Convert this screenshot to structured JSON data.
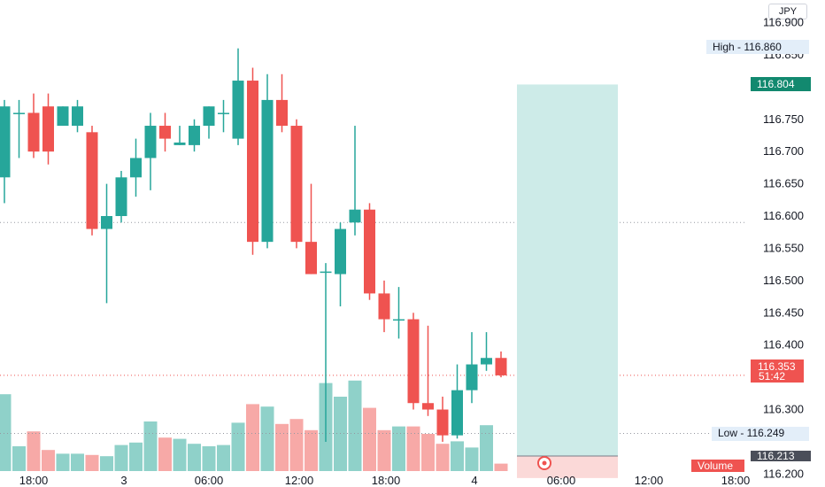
{
  "currency_label": "JPY",
  "colors": {
    "up": "#26a69a",
    "down": "#ef5350",
    "up_volume": "#8fd1c9",
    "down_volume": "#f7a9a7",
    "position_target": "#cdebe8",
    "position_stop": "#fbd9d8",
    "high_low_tag": "#e3eef9",
    "price_line": "#ef5350",
    "crosshair": "#9598a1"
  },
  "labels": {
    "high": "High  -  116.860",
    "low": "Low  -  116.249",
    "target_price": "116.804",
    "price_value": "116.353",
    "countdown": "51:42",
    "stop_price": "116.213",
    "volume": "Volume"
  },
  "chart_data": {
    "type": "candlestick",
    "ylim": [
      116.195,
      116.935
    ],
    "y_ticks": [
      "116.900",
      "116.850",
      "116.750",
      "116.700",
      "116.650",
      "116.600",
      "116.550",
      "116.500",
      "116.450",
      "116.400",
      "116.300",
      "116.200"
    ],
    "x_ticks": [
      "18:00",
      "3",
      "06:00",
      "12:00",
      "18:00",
      "4",
      "06:00",
      "12:00",
      "18:00"
    ],
    "candles": [
      {
        "o": 116.66,
        "h": 116.78,
        "l": 116.62,
        "c": 116.77,
        "v": 0.62
      },
      {
        "o": 116.76,
        "h": 116.78,
        "l": 116.69,
        "c": 116.76,
        "v": 0.2
      },
      {
        "o": 116.76,
        "h": 116.79,
        "l": 116.69,
        "c": 116.7,
        "v": 0.32
      },
      {
        "o": 116.77,
        "h": 116.79,
        "l": 116.68,
        "c": 116.7,
        "v": 0.17
      },
      {
        "o": 116.74,
        "h": 116.77,
        "l": 116.74,
        "c": 116.77,
        "v": 0.14
      },
      {
        "o": 116.74,
        "h": 116.78,
        "l": 116.73,
        "c": 116.77,
        "v": 0.14
      },
      {
        "o": 116.73,
        "h": 116.74,
        "l": 116.57,
        "c": 116.58,
        "v": 0.13
      },
      {
        "o": 116.58,
        "h": 116.65,
        "l": 116.465,
        "c": 116.6,
        "v": 0.12
      },
      {
        "o": 116.6,
        "h": 116.67,
        "l": 116.59,
        "c": 116.66,
        "v": 0.21
      },
      {
        "o": 116.66,
        "h": 116.72,
        "l": 116.63,
        "c": 116.69,
        "v": 0.23
      },
      {
        "o": 116.69,
        "h": 116.76,
        "l": 116.64,
        "c": 116.74,
        "v": 0.4
      },
      {
        "o": 116.74,
        "h": 116.76,
        "l": 116.7,
        "c": 116.72,
        "v": 0.27
      },
      {
        "o": 116.71,
        "h": 116.74,
        "l": 116.71,
        "c": 116.714,
        "v": 0.26
      },
      {
        "o": 116.71,
        "h": 116.75,
        "l": 116.7,
        "c": 116.74,
        "v": 0.22
      },
      {
        "o": 116.74,
        "h": 116.77,
        "l": 116.72,
        "c": 116.77,
        "v": 0.2
      },
      {
        "o": 116.76,
        "h": 116.78,
        "l": 116.73,
        "c": 116.76,
        "v": 0.21
      },
      {
        "o": 116.72,
        "h": 116.86,
        "l": 116.71,
        "c": 116.81,
        "v": 0.39
      },
      {
        "o": 116.81,
        "h": 116.83,
        "l": 116.54,
        "c": 116.56,
        "v": 0.54
      },
      {
        "o": 116.56,
        "h": 116.82,
        "l": 116.55,
        "c": 116.78,
        "v": 0.52
      },
      {
        "o": 116.78,
        "h": 116.82,
        "l": 116.73,
        "c": 116.74,
        "v": 0.38
      },
      {
        "o": 116.74,
        "h": 116.75,
        "l": 116.55,
        "c": 116.56,
        "v": 0.42
      },
      {
        "o": 116.56,
        "h": 116.65,
        "l": 116.51,
        "c": 116.51,
        "v": 0.33
      },
      {
        "o": 116.514,
        "h": 116.527,
        "l": 116.25,
        "c": 116.514,
        "v": 0.71
      },
      {
        "o": 116.51,
        "h": 116.59,
        "l": 116.46,
        "c": 116.58,
        "v": 0.6
      },
      {
        "o": 116.59,
        "h": 116.74,
        "l": 116.57,
        "c": 116.61,
        "v": 0.73
      },
      {
        "o": 116.61,
        "h": 116.62,
        "l": 116.47,
        "c": 116.48,
        "v": 0.51
      },
      {
        "o": 116.48,
        "h": 116.5,
        "l": 116.42,
        "c": 116.44,
        "v": 0.33
      },
      {
        "o": 116.44,
        "h": 116.49,
        "l": 116.41,
        "c": 116.44,
        "v": 0.36
      },
      {
        "o": 116.44,
        "h": 116.45,
        "l": 116.3,
        "c": 116.31,
        "v": 0.36
      },
      {
        "o": 116.31,
        "h": 116.43,
        "l": 116.29,
        "c": 116.3,
        "v": 0.3
      },
      {
        "o": 116.3,
        "h": 116.32,
        "l": 116.25,
        "c": 116.26,
        "v": 0.22
      },
      {
        "o": 116.26,
        "h": 116.37,
        "l": 116.255,
        "c": 116.33,
        "v": 0.24
      },
      {
        "o": 116.33,
        "h": 116.42,
        "l": 116.31,
        "c": 116.37,
        "v": 0.19
      },
      {
        "o": 116.37,
        "h": 116.42,
        "l": 116.36,
        "c": 116.38,
        "v": 0.37
      },
      {
        "o": 116.38,
        "h": 116.39,
        "l": 116.35,
        "c": 116.353,
        "v": 0.06
      }
    ],
    "position": {
      "target": 116.804,
      "entry": 116.228,
      "stop": 116.213
    },
    "horizontal_lines": [
      116.59,
      116.263
    ],
    "current_price": 116.353
  }
}
